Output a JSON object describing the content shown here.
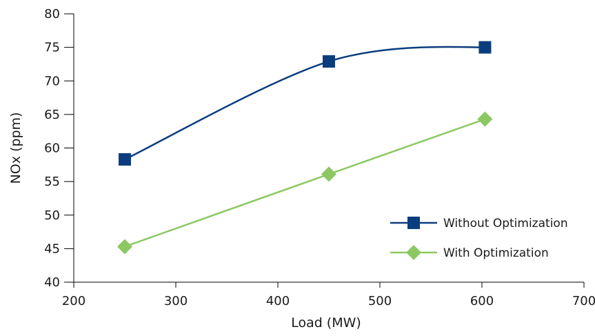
{
  "chart_data": {
    "type": "line",
    "xlabel": "Load (MW)",
    "ylabel": "NOx (ppm)",
    "xlim": [
      200,
      700
    ],
    "ylim": [
      40,
      80
    ],
    "x_ticks": [
      200,
      300,
      400,
      500,
      600,
      700
    ],
    "y_ticks": [
      40,
      45,
      50,
      55,
      60,
      65,
      70,
      75,
      80
    ],
    "grid": false,
    "legend_position": "bottom-right",
    "series": [
      {
        "name": "Without Optimization",
        "color": "#0b3d7e",
        "marker": "square",
        "smooth": true,
        "x": [
          250,
          450,
          603
        ],
        "y": [
          58.3,
          72.9,
          75.0
        ]
      },
      {
        "name": "With Optimization",
        "color": "#8cc862",
        "marker": "diamond",
        "smooth": false,
        "x": [
          250,
          450,
          603
        ],
        "y": [
          45.3,
          56.1,
          64.3
        ]
      }
    ]
  }
}
